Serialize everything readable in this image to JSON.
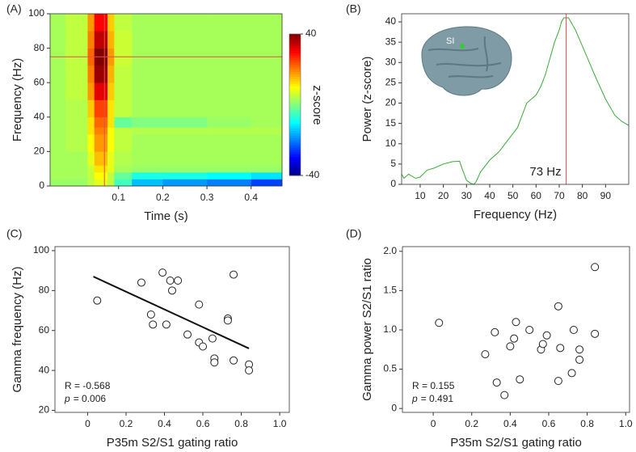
{
  "chart_data": [
    {
      "type": "heatmap",
      "label": "(A)",
      "xlabel": "Time (s)",
      "ylabel": "Frequency (Hz)",
      "xlim": [
        -0.055,
        0.47
      ],
      "ylim": [
        0,
        100
      ],
      "xticks": [
        0.1,
        0.2,
        0.3,
        0.4
      ],
      "yticks": [
        0,
        20,
        40,
        60,
        80,
        100
      ],
      "x_edges": [
        -0.055,
        -0.02,
        0.03,
        0.045,
        0.075,
        0.09,
        0.13,
        0.2,
        0.3,
        0.4,
        0.47
      ],
      "y_edges": [
        0,
        4,
        8,
        12,
        20,
        30,
        34,
        40,
        50,
        60,
        70,
        80,
        90,
        100
      ],
      "z": [
        [
          2,
          2,
          5,
          8,
          5,
          -5,
          -15,
          -18,
          -20,
          -25
        ],
        [
          3,
          3,
          5,
          10,
          5,
          -2,
          -8,
          -8,
          -10,
          -12
        ],
        [
          3,
          3,
          6,
          12,
          8,
          3,
          2,
          2,
          2,
          2
        ],
        [
          3,
          3,
          8,
          15,
          8,
          4,
          3,
          3,
          3,
          3
        ],
        [
          3,
          4,
          10,
          18,
          10,
          5,
          3,
          3,
          3,
          3
        ],
        [
          3,
          4,
          12,
          20,
          10,
          5,
          4,
          4,
          4,
          4
        ],
        [
          3,
          4,
          12,
          22,
          12,
          -2,
          0,
          0,
          2,
          3
        ],
        [
          3,
          4,
          14,
          25,
          12,
          5,
          3,
          3,
          3,
          3
        ],
        [
          3,
          5,
          18,
          32,
          14,
          5,
          3,
          3,
          3,
          3
        ],
        [
          3,
          5,
          20,
          38,
          16,
          5,
          3,
          3,
          3,
          3
        ],
        [
          3,
          5,
          22,
          40,
          18,
          6,
          3,
          3,
          3,
          3
        ],
        [
          3,
          5,
          20,
          35,
          16,
          6,
          3,
          3,
          3,
          3
        ],
        [
          3,
          5,
          18,
          30,
          14,
          5,
          3,
          3,
          3,
          3
        ]
      ],
      "clim": [
        -40,
        40
      ],
      "cticks": [
        -40,
        40
      ],
      "clabel": "z-score",
      "cursor": {
        "x": 0.068,
        "y": 75,
        "color": "#e05050"
      }
    },
    {
      "type": "line",
      "label": "(B)",
      "xlabel": "Frequency (Hz)",
      "ylabel": "Power (z-score)",
      "xlim": [
        2,
        100
      ],
      "ylim": [
        0,
        42
      ],
      "xticks": [
        10,
        20,
        30,
        40,
        50,
        60,
        70,
        80,
        90
      ],
      "yticks": [
        0,
        5,
        10,
        15,
        20,
        25,
        30,
        35,
        40
      ],
      "x": [
        2,
        3,
        5,
        8,
        10,
        13,
        16,
        20,
        24,
        27,
        28,
        30,
        32,
        33,
        34,
        36,
        40,
        44,
        48,
        52,
        56,
        58,
        60,
        62,
        64,
        66,
        68,
        70,
        71,
        72,
        74,
        75,
        77,
        80,
        83,
        86,
        90,
        94,
        97,
        100
      ],
      "values": [
        2.5,
        1.5,
        2.5,
        1.5,
        1.8,
        3.5,
        4,
        5,
        5.6,
        5.7,
        4,
        1,
        0.2,
        0,
        0.5,
        3,
        6,
        8,
        11,
        14,
        20,
        21,
        22,
        24,
        27,
        31,
        35,
        38,
        40,
        41,
        41,
        40,
        38,
        34,
        30,
        26,
        21,
        17,
        15.5,
        14.5
      ],
      "color": "#3aaa3a",
      "marker_x": 73,
      "marker_color": "#e05050",
      "annotation": "73 Hz",
      "inset_label": "SI"
    },
    {
      "type": "scatter",
      "label": "(C)",
      "xlabel": "P35m S2/S1 gating ratio",
      "ylabel": "Gamma frequency (Hz)",
      "xlim": [
        -0.17,
        1.05
      ],
      "ylim": [
        19,
        102
      ],
      "xticks": [
        0,
        0.2,
        0.4,
        0.6,
        0.8,
        {
          "value": 1,
          "label": "1.0"
        }
      ],
      "yticks": [
        20,
        40,
        60,
        80,
        100
      ],
      "x": [
        0.05,
        0.28,
        0.39,
        0.43,
        0.47,
        0.44,
        0.33,
        0.34,
        0.41,
        0.58,
        0.52,
        0.58,
        0.6,
        0.65,
        0.66,
        0.66,
        0.73,
        0.73,
        0.76,
        0.76,
        0.84,
        0.84
      ],
      "values": [
        75,
        84,
        89,
        85,
        85,
        80,
        68,
        63,
        63,
        73,
        58,
        54,
        52,
        56,
        46,
        44,
        66,
        65,
        88,
        45,
        43,
        40
      ],
      "fit": {
        "x": [
          0.03,
          0.84
        ],
        "y": [
          87,
          51
        ]
      },
      "stat_r": "R = -0.568",
      "stat_p_symbol": "p",
      "stat_p": "= 0.006"
    },
    {
      "type": "scatter",
      "label": "(D)",
      "xlabel": "P35m S2/S1 gating ratio",
      "ylabel": "Gamma power S2/S1 ratio",
      "xlim": [
        -0.16,
        1.02
      ],
      "ylim": [
        -0.05,
        2.06
      ],
      "xticks": [
        0,
        0.2,
        0.4,
        0.6,
        0.8,
        {
          "value": 1,
          "label": "1.0"
        }
      ],
      "yticks": [
        0,
        0.5,
        {
          "value": 1,
          "label": "1.0"
        },
        1.5,
        {
          "value": 2,
          "label": "2.0"
        }
      ],
      "x": [
        0.03,
        0.27,
        0.32,
        0.33,
        0.37,
        0.4,
        0.42,
        0.43,
        0.45,
        0.5,
        0.56,
        0.57,
        0.59,
        0.65,
        0.65,
        0.66,
        0.72,
        0.73,
        0.76,
        0.76,
        0.84,
        0.84
      ],
      "values": [
        1.09,
        0.69,
        0.97,
        0.33,
        0.17,
        0.79,
        0.89,
        1.1,
        0.37,
        1.0,
        0.75,
        0.82,
        0.93,
        0.35,
        1.3,
        0.77,
        0.45,
        1.0,
        0.62,
        0.75,
        1.8,
        0.95
      ],
      "stat_r": "R = 0.155",
      "stat_p_symbol": "p",
      "stat_p": "= 0.491"
    }
  ]
}
